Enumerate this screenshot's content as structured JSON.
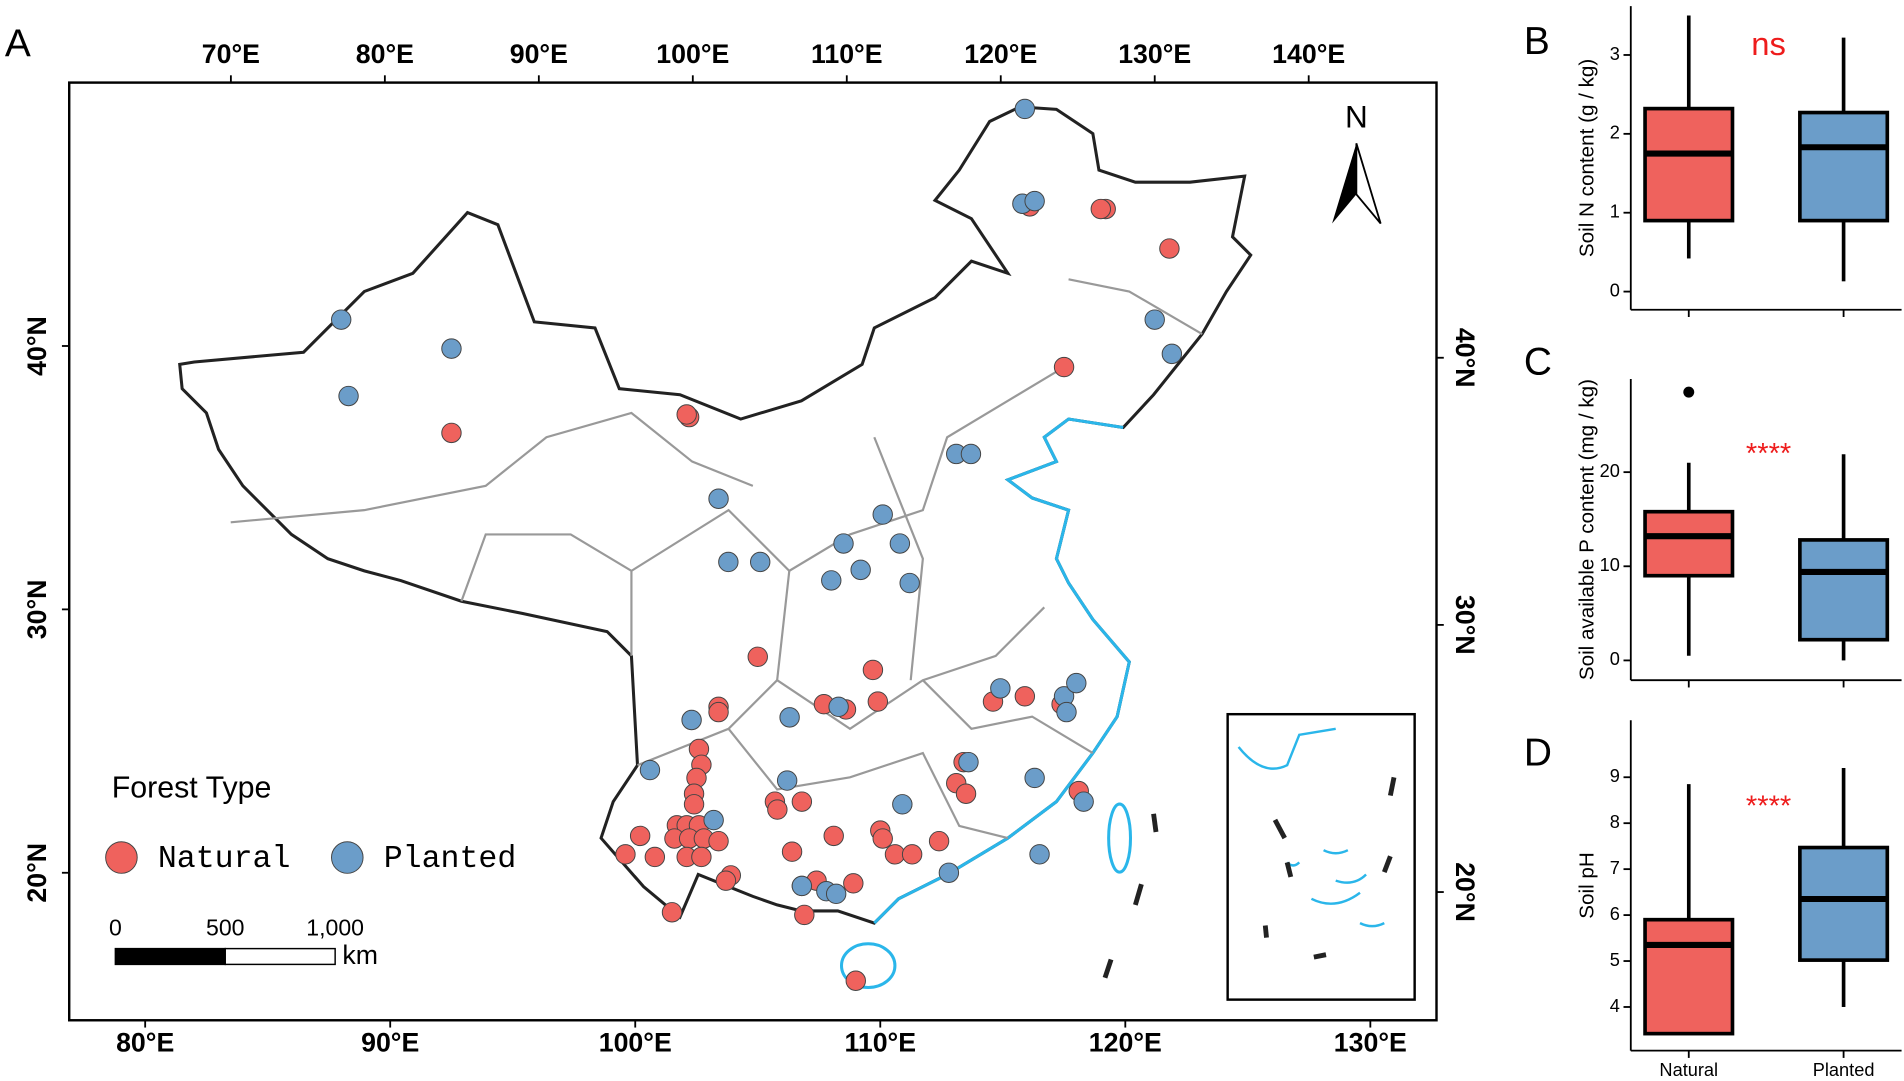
{
  "chart_data": [
    {
      "type": "scatter",
      "panel": "A",
      "legend_title": "Forest Type",
      "north": "N",
      "xlim": [
        76.9,
        132.7
      ],
      "ylim": [
        14.4,
        50.0
      ],
      "xticks": [
        {
          "value": 80,
          "label": "80°E"
        },
        {
          "value": 90,
          "label": "90°E"
        },
        {
          "value": 100,
          "label": "100°E"
        },
        {
          "value": 110,
          "label": "110°E"
        },
        {
          "value": 120,
          "label": "120°E"
        },
        {
          "value": 130,
          "label": "130°E"
        }
      ],
      "yticks": [
        {
          "value": 20,
          "label": "20°N"
        },
        {
          "value": 30,
          "label": "30°N"
        },
        {
          "value": 40,
          "label": "40°N"
        }
      ],
      "x2lim": [
        59.5,
        148.3
      ],
      "x2ticks": [
        {
          "value": 70,
          "label": "70°E"
        },
        {
          "value": 80,
          "label": "80°E"
        },
        {
          "value": 90,
          "label": "90°E"
        },
        {
          "value": 100,
          "label": "100°E"
        },
        {
          "value": 110,
          "label": "110°E"
        },
        {
          "value": 120,
          "label": "120°E"
        },
        {
          "value": 130,
          "label": "130°E"
        },
        {
          "value": 140,
          "label": "140°E"
        }
      ],
      "y2lim": [
        15.2,
        50.3
      ],
      "y2ticks": [
        {
          "value": 20,
          "label": "20°N"
        },
        {
          "value": 30,
          "label": "30°N"
        },
        {
          "value": 40,
          "label": "40°N"
        }
      ],
      "scale_bar": {
        "ticks": [
          0,
          500,
          {
            "value": 1000,
            "label": "1,000"
          }
        ],
        "unit": "km"
      },
      "series": [
        {
          "name": "Natural",
          "color": "#ef625d",
          "x": [
            92.5,
            102.2,
            102.1,
            119.2,
            119.0,
            121.8,
            117.5,
            116.1,
            105.0,
            109.7,
            109.9,
            108.6,
            107.7,
            103.4,
            103.4,
            102.6,
            102.7,
            102.5,
            102.4,
            102.4,
            101.7,
            102.1,
            102.6,
            101.6,
            102.2,
            102.8,
            103.4,
            100.2,
            99.6,
            100.8,
            102.1,
            102.7,
            103.9,
            103.7,
            101.5,
            105.7,
            105.8,
            106.8,
            106.4,
            108.1,
            106.8,
            107.4,
            108.9,
            106.9,
            109.0,
            110.0,
            110.1,
            110.6,
            111.3,
            112.4,
            113.4,
            113.1,
            113.5,
            114.6,
            115.9,
            117.4,
            118.1
          ],
          "y": [
            36.7,
            37.3,
            37.4,
            45.2,
            45.2,
            43.7,
            39.2,
            45.3,
            28.2,
            27.7,
            26.5,
            26.2,
            26.4,
            26.3,
            26.1,
            24.7,
            24.1,
            23.6,
            23.0,
            22.6,
            21.8,
            21.8,
            21.8,
            21.3,
            21.3,
            21.3,
            21.2,
            21.4,
            20.7,
            20.6,
            20.6,
            20.6,
            19.9,
            19.7,
            18.5,
            22.7,
            22.4,
            22.7,
            20.8,
            21.4,
            19.5,
            19.7,
            19.6,
            18.4,
            15.9,
            21.6,
            21.3,
            20.7,
            20.7,
            21.2,
            24.2,
            23.4,
            23.0,
            26.5,
            26.7,
            26.4,
            23.1
          ]
        },
        {
          "name": "Planted",
          "color": "#6b9dc9",
          "x": [
            115.9,
            115.8,
            116.3,
            88.0,
            92.5,
            88.3,
            121.2,
            121.9,
            113.1,
            113.7,
            103.4,
            103.8,
            105.1,
            108.5,
            110.1,
            110.8,
            109.2,
            108.0,
            111.2,
            108.3,
            106.3,
            102.3,
            100.6,
            103.2,
            106.2,
            110.9,
            114.9,
            117.5,
            118.0,
            117.6,
            116.3,
            118.3,
            113.6,
            112.8,
            116.5,
            106.8,
            107.8,
            108.2
          ],
          "y": [
            49.0,
            45.4,
            45.5,
            41.0,
            39.9,
            38.1,
            41.0,
            39.7,
            35.9,
            35.9,
            34.2,
            31.8,
            31.8,
            32.5,
            33.6,
            32.5,
            31.5,
            31.1,
            31.0,
            26.3,
            25.9,
            25.8,
            23.9,
            22.0,
            23.5,
            22.6,
            27.0,
            26.7,
            27.2,
            26.1,
            23.6,
            22.7,
            24.2,
            20.0,
            20.7,
            19.5,
            19.3,
            19.2
          ]
        }
      ]
    },
    {
      "type": "box",
      "panel": "B",
      "ylabel": "Soil N content (g / kg)",
      "annotation": "ns",
      "annotation_color": "#ee1c1c",
      "categories": [
        null,
        null
      ],
      "ylim": [
        -0.23,
        3.62
      ],
      "yticks": [
        0,
        1,
        2,
        3
      ],
      "boxes": [
        {
          "color": "#ef625d",
          "whislo": 0.42,
          "q1": 0.9,
          "med": 1.75,
          "q3": 2.32,
          "whishi": 3.5
        },
        {
          "color": "#6b9dc9",
          "whislo": 0.13,
          "q1": 0.9,
          "med": 1.83,
          "q3": 2.27,
          "whishi": 3.22
        }
      ]
    },
    {
      "type": "box",
      "panel": "C",
      "ylabel": "Soil available P content (mg / kg)",
      "annotation": "****",
      "annotation_color": "#ee1c1c",
      "categories": [
        null,
        null
      ],
      "ylim": [
        -2.1,
        29.9
      ],
      "yticks": [
        0,
        10,
        20
      ],
      "boxes": [
        {
          "color": "#ef625d",
          "whislo": 0.5,
          "q1": 9.0,
          "med": 13.2,
          "q3": 15.8,
          "whishi": 21.0,
          "fliers": [
            28.5
          ]
        },
        {
          "color": "#6b9dc9",
          "whislo": 0.0,
          "q1": 2.2,
          "med": 9.4,
          "q3": 12.8,
          "whishi": 21.9
        }
      ]
    },
    {
      "type": "box",
      "panel": "D",
      "ylabel": "Soil pH",
      "annotation": "****",
      "annotation_color": "#ee1c1c",
      "categories": [
        "Natural",
        "Planted"
      ],
      "ylim": [
        3.05,
        10.24
      ],
      "yticks": [
        4,
        5,
        6,
        7,
        8,
        9
      ],
      "boxes": [
        {
          "color": "#ef625d",
          "whislo": 3.4,
          "q1": 3.42,
          "med": 5.35,
          "q3": 5.9,
          "whishi": 8.85
        },
        {
          "color": "#6b9dc9",
          "whislo": 4.0,
          "q1": 5.02,
          "med": 6.35,
          "q3": 7.47,
          "whishi": 9.2
        }
      ]
    }
  ]
}
